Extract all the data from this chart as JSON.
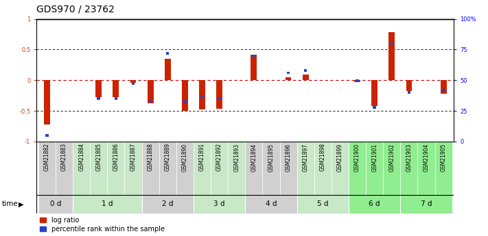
{
  "title": "GDS970 / 23762",
  "samples": [
    "GSM21882",
    "GSM21883",
    "GSM21884",
    "GSM21885",
    "GSM21886",
    "GSM21887",
    "GSM21888",
    "GSM21889",
    "GSM21890",
    "GSM21891",
    "GSM21892",
    "GSM21893",
    "GSM21894",
    "GSM21895",
    "GSM21896",
    "GSM21897",
    "GSM21898",
    "GSM21899",
    "GSM21900",
    "GSM21901",
    "GSM21902",
    "GSM21903",
    "GSM21904",
    "GSM21905"
  ],
  "log_ratio": [
    -0.72,
    0.0,
    0.0,
    -0.28,
    -0.28,
    -0.04,
    -0.38,
    0.35,
    -0.5,
    -0.48,
    -0.47,
    0.0,
    0.42,
    0.0,
    0.05,
    0.09,
    0.0,
    0.0,
    -0.03,
    -0.42,
    0.78,
    -0.18,
    0.0,
    -0.22
  ],
  "percentile": [
    5,
    0,
    0,
    35,
    35,
    47,
    33,
    72,
    33,
    37,
    35,
    0,
    70,
    0,
    56,
    58,
    0,
    0,
    50,
    28,
    80,
    40,
    0,
    42
  ],
  "time_groups": [
    {
      "label": "0 d",
      "samples": [
        "GSM21882",
        "GSM21883"
      ],
      "color": "#d0d0d0"
    },
    {
      "label": "1 d",
      "samples": [
        "GSM21884",
        "GSM21885",
        "GSM21886",
        "GSM21887"
      ],
      "color": "#c8e8c8"
    },
    {
      "label": "2 d",
      "samples": [
        "GSM21888",
        "GSM21889",
        "GSM21890"
      ],
      "color": "#d0d0d0"
    },
    {
      "label": "3 d",
      "samples": [
        "GSM21891",
        "GSM21892",
        "GSM21893"
      ],
      "color": "#c8e8c8"
    },
    {
      "label": "4 d",
      "samples": [
        "GSM21894",
        "GSM21895",
        "GSM21896"
      ],
      "color": "#d0d0d0"
    },
    {
      "label": "5 d",
      "samples": [
        "GSM21897",
        "GSM21898",
        "GSM21899"
      ],
      "color": "#c8e8c8"
    },
    {
      "label": "6 d",
      "samples": [
        "GSM21900",
        "GSM21901",
        "GSM21902"
      ],
      "color": "#90ee90"
    },
    {
      "label": "7 d",
      "samples": [
        "GSM21903",
        "GSM21904",
        "GSM21905"
      ],
      "color": "#90ee90"
    }
  ],
  "bar_color_red": "#cc2200",
  "bar_color_blue": "#2244cc",
  "dotted_red_color": "#cc0000",
  "title_fontsize": 10,
  "tick_fontsize": 6,
  "label_fontsize": 5.5,
  "time_fontsize": 7.5,
  "legend_fontsize": 7
}
